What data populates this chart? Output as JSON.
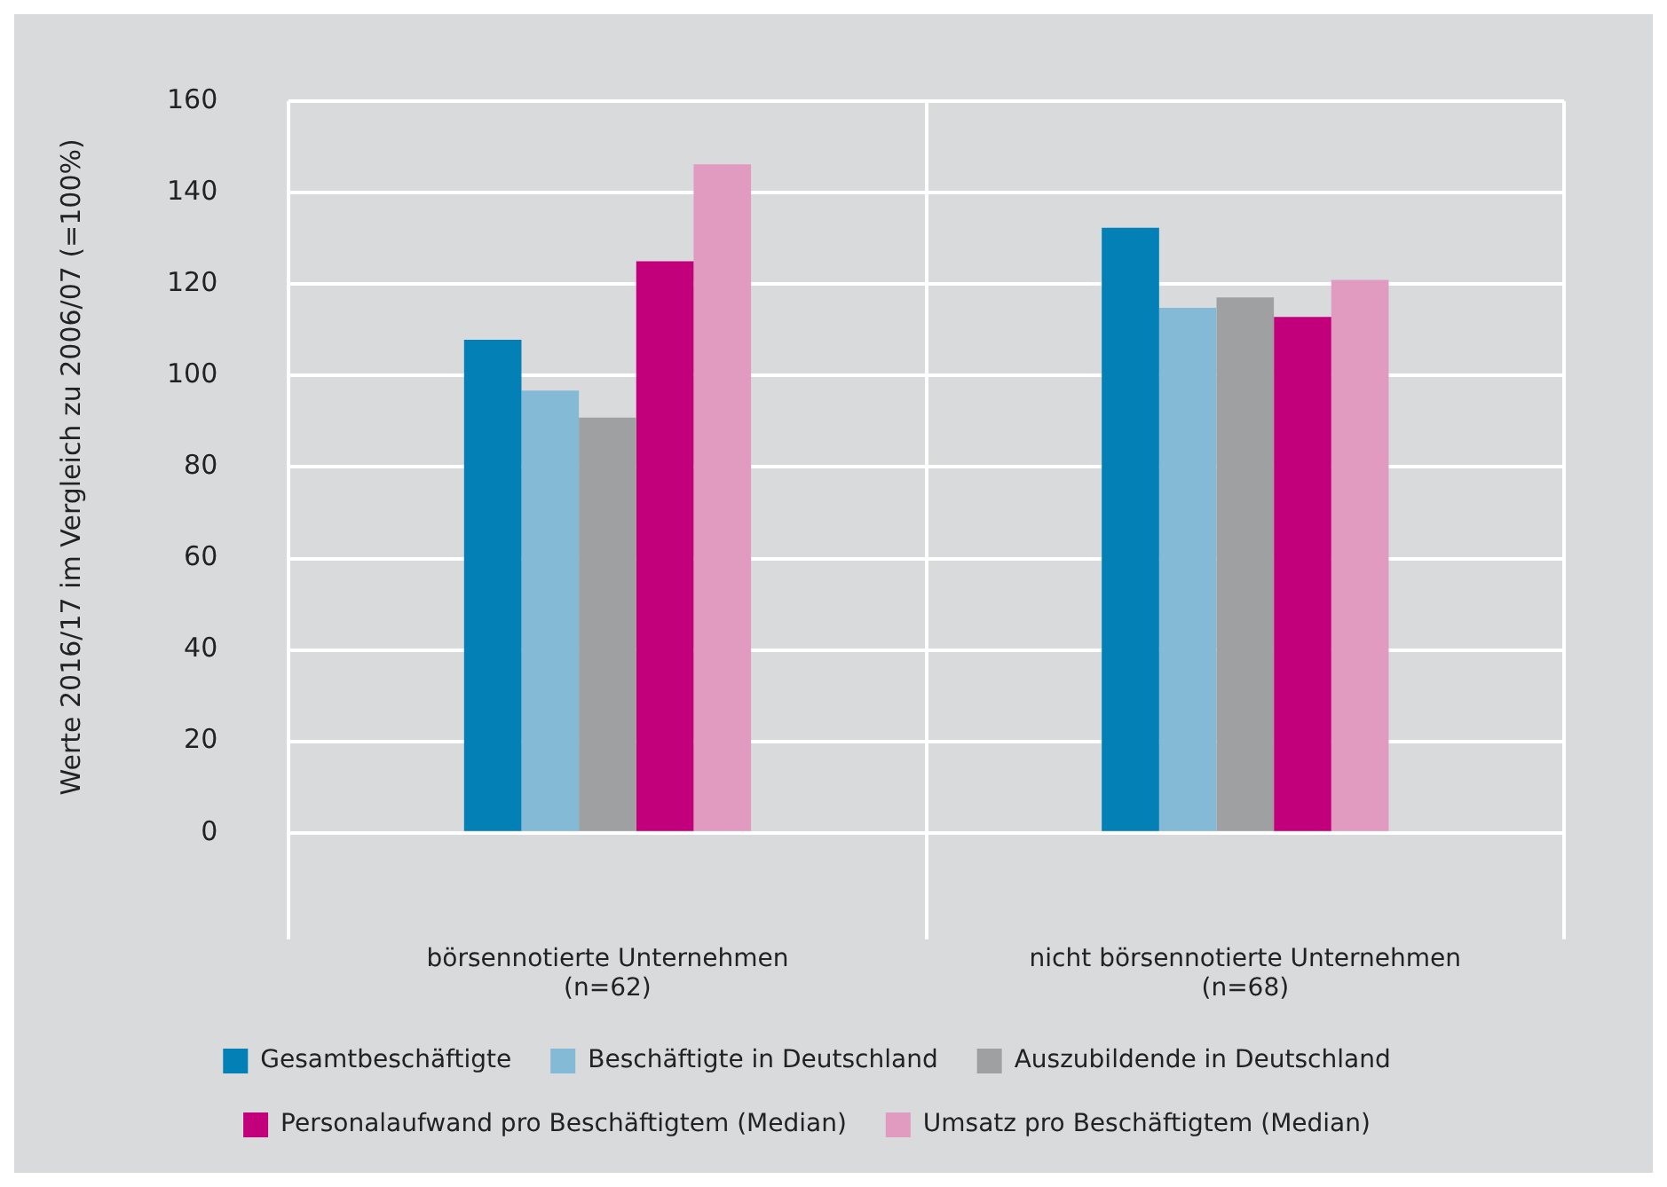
{
  "chart_data": {
    "type": "bar",
    "ylabel": "Werte 2016/17 im Vergleich zu 2006/07 (=100%)",
    "categories": [
      "börsennotierte Unternehmen (n=62)",
      "nicht börsennotierte Unternehmen (n=68)"
    ],
    "series": [
      {
        "name": "Gesamtbeschäftigte",
        "color": "#0380b5",
        "values": [
          107.8,
          132.3
        ]
      },
      {
        "name": "Beschäftigte in Deutschland",
        "color": "#85bad6",
        "values": [
          96.7,
          114.8
        ]
      },
      {
        "name": "Auszubildende in Deutschland",
        "color": "#9fa0a2",
        "values": [
          90.8,
          117.1
        ]
      },
      {
        "name": "Personalaufwand pro Beschäftigtem (Median)",
        "color": "#c3007b",
        "values": [
          125,
          112.8
        ]
      },
      {
        "name": "Umsatz pro Beschäftigtem (Median)",
        "color": "#e19bc1",
        "values": [
          146.2,
          120.9
        ]
      }
    ],
    "ylim": [
      0,
      160
    ],
    "yticks": [
      0,
      20,
      40,
      60,
      80,
      100,
      120,
      140,
      160
    ],
    "grid": true,
    "legend": "bottom"
  }
}
